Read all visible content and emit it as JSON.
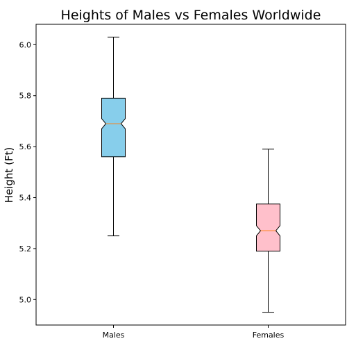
{
  "chart_data": {
    "type": "boxplot",
    "title": "Heights of Males vs Females Worldwide",
    "xlabel": "",
    "ylabel": "Height (Ft)",
    "ylim": [
      4.9,
      6.08
    ],
    "yticks": [
      "5.0",
      "5.2",
      "5.4",
      "5.6",
      "5.8",
      "6.0"
    ],
    "notched": true,
    "grid": false,
    "categories": [
      "Males",
      "Females"
    ],
    "boxes": [
      {
        "label": "Males",
        "whisker_low": 5.25,
        "q1": 5.56,
        "notch_low": 5.67,
        "median": 5.69,
        "notch_high": 5.71,
        "q3": 5.79,
        "whisker_high": 6.03,
        "color": "#87ceeb"
      },
      {
        "label": "Females",
        "whisker_low": 4.95,
        "q1": 5.19,
        "notch_low": 5.25,
        "median": 5.27,
        "notch_high": 5.29,
        "q3": 5.375,
        "whisker_high": 5.59,
        "color": "#ffc0cb"
      }
    ],
    "median_color": "#ff7f0e"
  }
}
